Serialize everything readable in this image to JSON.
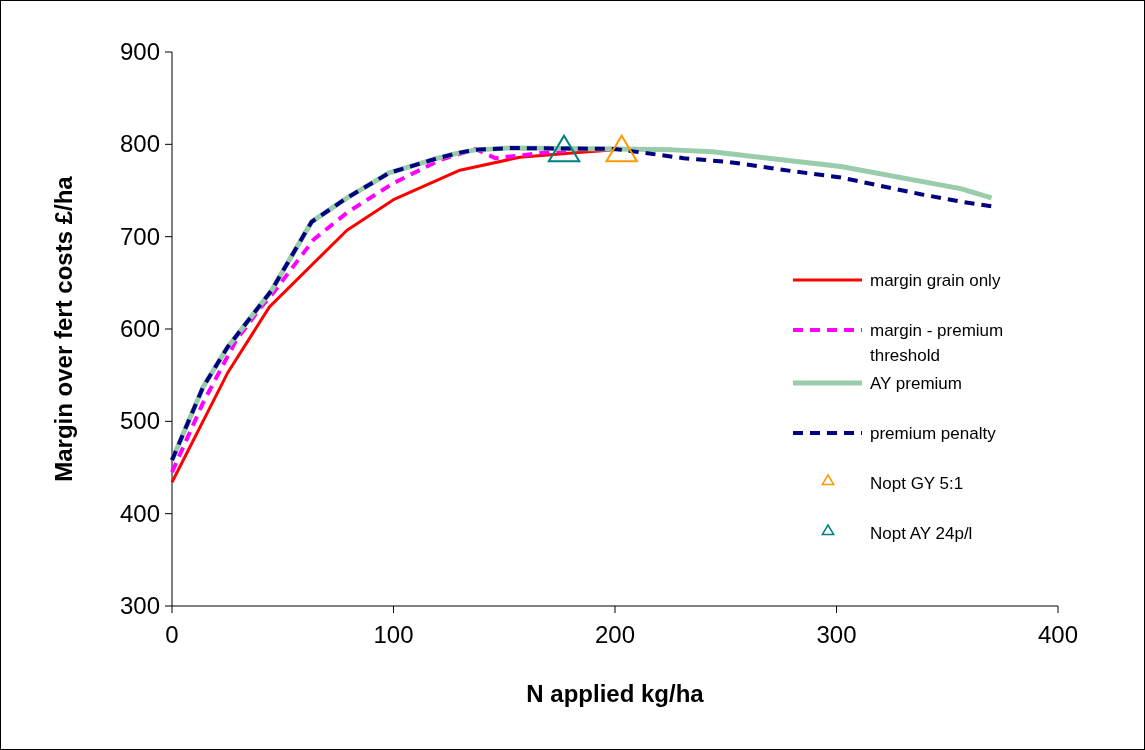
{
  "chart_data": {
    "type": "line",
    "xlabel": "N applied kg/ha",
    "ylabel": "Margin over fert costs £/ha",
    "xlim": [
      0,
      400
    ],
    "xticks": [
      0,
      100,
      200,
      300,
      400
    ],
    "ylim": [
      300,
      900
    ],
    "yticks": [
      300,
      400,
      500,
      600,
      700,
      800,
      900
    ],
    "grid": false,
    "legend": "right",
    "series": [
      {
        "name": "margin grain only",
        "color": "#ff0000",
        "line_style": "solid",
        "x": [
          0,
          25,
          44,
          79,
          100,
          130,
          157,
          182,
          200
        ],
        "values": [
          434,
          552,
          624,
          707,
          740,
          772,
          786,
          791,
          794
        ]
      },
      {
        "name": "margin - premium threshold",
        "color": "#ff00ff",
        "line_style": "dashed",
        "x": [
          0,
          14,
          29,
          40,
          46,
          64,
          79,
          100,
          121,
          137,
          146,
          161,
          180
        ],
        "values": [
          445,
          520,
          588,
          623,
          640,
          697,
          726,
          758,
          783,
          795,
          785,
          789,
          794
        ]
      },
      {
        "name": "AY premium",
        "color": "#99ccaa",
        "line_style": "solid",
        "x": [
          0,
          14,
          25,
          45,
          63,
          79,
          98,
          120,
          130,
          137,
          153,
          200,
          226,
          244,
          302,
          356,
          370
        ],
        "values": [
          458,
          537,
          580,
          642,
          716,
          742,
          769,
          785,
          791,
          794,
          796,
          795,
          794,
          792,
          776,
          752,
          742
        ]
      },
      {
        "name": "premium penalty",
        "color": "#000080",
        "line_style": "dashed",
        "x": [
          0,
          14,
          25,
          45,
          63,
          79,
          98,
          120,
          130,
          137,
          153,
          200,
          231,
          251,
          280,
          302,
          338,
          356,
          370
        ],
        "values": [
          458,
          537,
          580,
          642,
          716,
          742,
          769,
          785,
          791,
          794,
          796,
          795,
          785,
          781,
          771,
          764,
          746,
          738,
          733
        ]
      },
      {
        "name": "Nopt GY 5:1",
        "type": "scatter",
        "color": "#ff9900",
        "marker": "triangle",
        "x": [
          203
        ],
        "values": [
          792
        ]
      },
      {
        "name": "Nopt AY 24p/l",
        "type": "scatter",
        "color": "#008080",
        "marker": "triangle",
        "x": [
          177
        ],
        "values": [
          792
        ]
      }
    ]
  }
}
